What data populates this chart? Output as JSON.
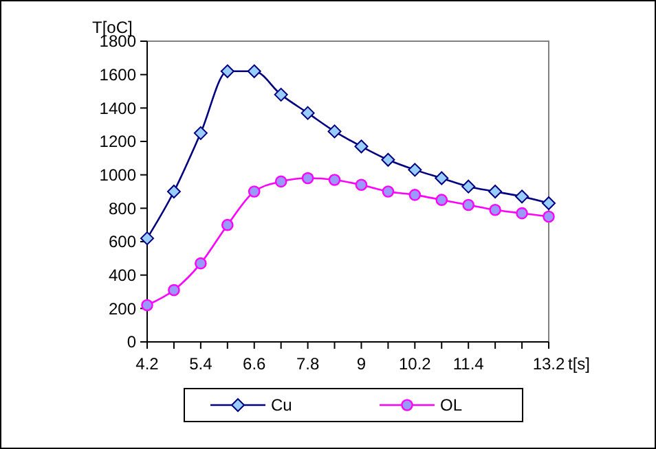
{
  "chart_data": {
    "type": "line",
    "xlabel": "t[s]",
    "ylabel": "T[oC]",
    "x": [
      4.2,
      4.8,
      5.4,
      6.0,
      6.6,
      7.2,
      7.8,
      8.4,
      9.0,
      9.6,
      10.2,
      10.8,
      11.4,
      12.0,
      12.6,
      13.2
    ],
    "xlim": [
      4.2,
      13.2
    ],
    "xticks": [
      4.2,
      {
        "value": 4.8,
        "label": null
      },
      5.4,
      {
        "value": 6.0,
        "label": null
      },
      6.6,
      {
        "value": 7.2,
        "label": null
      },
      7.8,
      {
        "value": 8.4,
        "label": null
      },
      9,
      {
        "value": 9.6,
        "label": null
      },
      10.2,
      {
        "value": 10.8,
        "label": null
      },
      11.4,
      {
        "value": 12.0,
        "label": null
      },
      {
        "value": 12.6,
        "label": null
      },
      13.2
    ],
    "ylim": [
      0,
      1800
    ],
    "yticks": [
      0,
      200,
      400,
      600,
      800,
      1000,
      1200,
      1400,
      1600,
      1800
    ],
    "grid": false,
    "legend": "bottom",
    "series": [
      {
        "name": "Cu",
        "color": "#000080",
        "marker": "diamond",
        "values": [
          620,
          900,
          1250,
          1620,
          1620,
          1480,
          1370,
          1260,
          1170,
          1090,
          1030,
          980,
          930,
          900,
          870,
          830
        ]
      },
      {
        "name": "OL",
        "color": "#ff00ff",
        "marker": "circle",
        "values": [
          220,
          310,
          470,
          700,
          900,
          960,
          980,
          970,
          940,
          900,
          880,
          850,
          820,
          790,
          770,
          750
        ]
      }
    ]
  }
}
